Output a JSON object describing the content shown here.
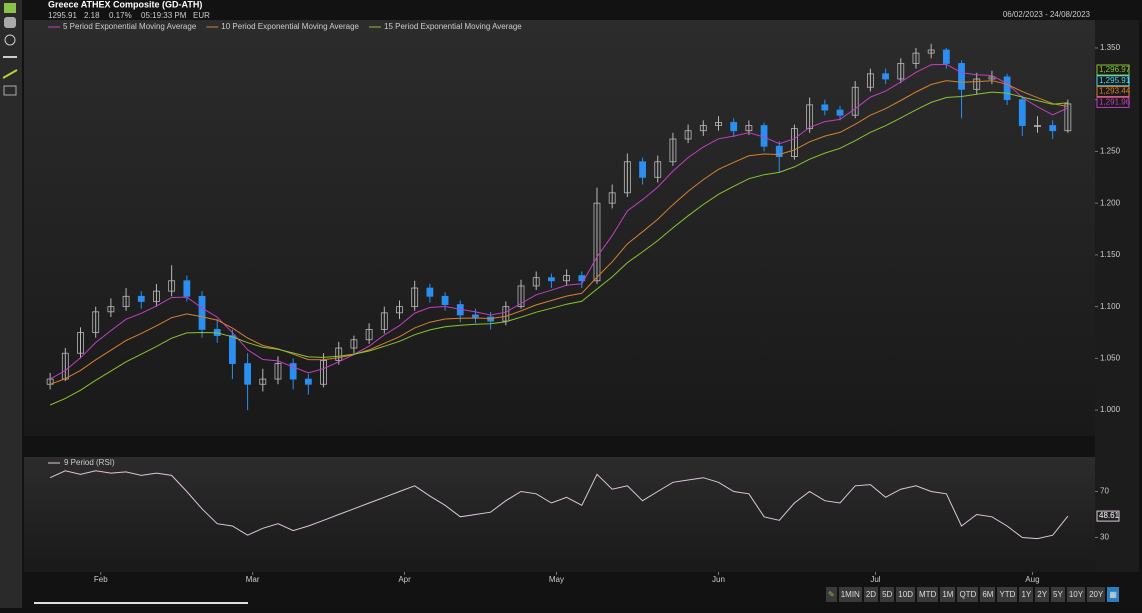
{
  "header": {
    "title": "Greece ATHEX Composite (GD-ATH)",
    "change": "2.18",
    "change_pct": "0.17%",
    "time": "05:19:33 PM",
    "currency": "EUR",
    "range": "06/02/2023 - 24/08/2023"
  },
  "last_labels": {
    "ema15": "1,296.97",
    "close": "1,295.91",
    "ema10": "1,293.44",
    "ema5": "1,291.96"
  },
  "buttons": [
    "1MIN",
    "2D",
    "5D",
    "10D",
    "MTD",
    "1M",
    "QTD",
    "6M",
    "YTD",
    "1Y",
    "2Y",
    "5Y",
    "10Y",
    "20Y"
  ],
  "chart_data": [
    {
      "type": "candlestick",
      "x": [
        0,
        3,
        6,
        9,
        12,
        15,
        18,
        21,
        24,
        27,
        30,
        33,
        36,
        39,
        42,
        45,
        48,
        51,
        54,
        57,
        60,
        63,
        66,
        69,
        72,
        75,
        78,
        81,
        84,
        87,
        90,
        93,
        96,
        99,
        102,
        105,
        108,
        111,
        114,
        117,
        120,
        123,
        126,
        129,
        132,
        135,
        138,
        141,
        144,
        147,
        150,
        153,
        156,
        159,
        162,
        165,
        168,
        171,
        174,
        177,
        180,
        183,
        186,
        189,
        192,
        195,
        198,
        201
      ],
      "xlim": [
        -2,
        203
      ],
      "xticks": [
        {
          "value": 10,
          "label": "Feb"
        },
        {
          "value": 40,
          "label": "Mar"
        },
        {
          "value": 70,
          "label": "Apr"
        },
        {
          "value": 100,
          "label": "May"
        },
        {
          "value": 132,
          "label": "Jun"
        },
        {
          "value": 163,
          "label": "Jul"
        },
        {
          "value": 194,
          "label": "Aug"
        }
      ],
      "ylim": [
        975,
        1377
      ],
      "yticks": [
        {
          "value": 1000,
          "label": "1.000"
        },
        {
          "value": 1050,
          "label": "1.050"
        },
        {
          "value": 1100,
          "label": "1.100"
        },
        {
          "value": 1150,
          "label": "1.150"
        },
        {
          "value": 1200,
          "label": "1.200"
        },
        {
          "value": 1250,
          "label": "1.250"
        },
        {
          "value": 1300,
          "label": "1.300"
        },
        {
          "value": 1350,
          "label": "1.350"
        }
      ],
      "grid": false,
      "up_color": "#b8b8b8",
      "down_color": "#2b8ff0",
      "open": [
        1025,
        1030,
        1055,
        1075,
        1095,
        1100,
        1110,
        1105,
        1115,
        1125,
        1110,
        1078,
        1072,
        1045,
        1025,
        1030,
        1045,
        1030,
        1025,
        1048,
        1060,
        1068,
        1078,
        1094,
        1100,
        1118,
        1110,
        1102,
        1092,
        1090,
        1086,
        1100,
        1120,
        1128,
        1125,
        1130,
        1125,
        1200,
        1210,
        1240,
        1225,
        1240,
        1262,
        1270,
        1275,
        1278,
        1270,
        1275,
        1255,
        1245,
        1272,
        1295,
        1290,
        1285,
        1312,
        1325,
        1320,
        1335,
        1345,
        1348,
        1335,
        1310,
        1320,
        1322,
        1300,
        1275,
        1275,
        1270
      ],
      "high": [
        1036,
        1060,
        1080,
        1100,
        1108,
        1118,
        1115,
        1122,
        1140,
        1130,
        1115,
        1088,
        1078,
        1055,
        1040,
        1052,
        1050,
        1035,
        1055,
        1066,
        1072,
        1084,
        1100,
        1106,
        1125,
        1122,
        1114,
        1106,
        1098,
        1095,
        1105,
        1126,
        1134,
        1132,
        1136,
        1134,
        1215,
        1218,
        1248,
        1244,
        1246,
        1268,
        1276,
        1280,
        1284,
        1282,
        1280,
        1278,
        1260,
        1276,
        1302,
        1300,
        1294,
        1318,
        1330,
        1330,
        1340,
        1350,
        1354,
        1350,
        1338,
        1326,
        1328,
        1325,
        1304,
        1284,
        1280,
        1300
      ],
      "low": [
        1020,
        1028,
        1050,
        1070,
        1090,
        1096,
        1098,
        1100,
        1110,
        1105,
        1070,
        1065,
        1030,
        1000,
        1018,
        1025,
        1020,
        1015,
        1022,
        1044,
        1055,
        1064,
        1074,
        1088,
        1096,
        1104,
        1096,
        1085,
        1084,
        1078,
        1082,
        1098,
        1116,
        1118,
        1120,
        1118,
        1122,
        1195,
        1206,
        1218,
        1220,
        1236,
        1258,
        1265,
        1270,
        1264,
        1266,
        1250,
        1230,
        1242,
        1268,
        1285,
        1280,
        1282,
        1308,
        1315,
        1316,
        1330,
        1340,
        1330,
        1282,
        1305,
        1315,
        1295,
        1265,
        1268,
        1262,
        1268
      ],
      "close": [
        1030,
        1055,
        1075,
        1095,
        1100,
        1110,
        1105,
        1115,
        1125,
        1110,
        1078,
        1072,
        1045,
        1025,
        1030,
        1045,
        1030,
        1025,
        1048,
        1060,
        1068,
        1078,
        1094,
        1100,
        1118,
        1110,
        1102,
        1092,
        1090,
        1086,
        1100,
        1120,
        1128,
        1125,
        1130,
        1125,
        1200,
        1210,
        1240,
        1225,
        1240,
        1262,
        1270,
        1275,
        1278,
        1270,
        1275,
        1255,
        1245,
        1272,
        1295,
        1290,
        1285,
        1312,
        1325,
        1320,
        1335,
        1345,
        1348,
        1335,
        1310,
        1320,
        1322,
        1300,
        1275,
        1275,
        1270,
        1295.91
      ],
      "series": [
        {
          "name": "5 Period Exponential Moving Average",
          "color": "#c23fc2",
          "values": [
            1030,
            1038.3,
            1050.6,
            1065.4,
            1076.9,
            1087.9,
            1093.6,
            1100.7,
            1108.8,
            1109.2,
            1098.8,
            1089.9,
            1074.9,
            1058.3,
            1048.9,
            1047.6,
            1041.7,
            1036.1,
            1040.1,
            1046.7,
            1053.8,
            1061.9,
            1072.6,
            1081.7,
            1093.8,
            1099.2,
            1100.1,
            1097.4,
            1094.9,
            1091.9,
            1094.6,
            1103.1,
            1111.4,
            1115.9,
            1120.6,
            1122.1,
            1148.1,
            1168.7,
            1192.5,
            1203.3,
            1215.5,
            1231,
            1244,
            1254.3,
            1262.2,
            1264.8,
            1268.2,
            1263.8,
            1257.5,
            1262.3,
            1273.2,
            1278.8,
            1280.9,
            1291.3,
            1302.5,
            1308.3,
            1317.2,
            1326.5,
            1333.7,
            1334.1,
            1326.1,
            1324.1,
            1323.4,
            1315.6,
            1302.1,
            1293.1,
            1285.4,
            1291.96
          ]
        },
        {
          "name": "10 Period Exponential Moving Average",
          "color": "#d5812f",
          "values": [
            1025,
            1030.4,
            1038.4,
            1048.6,
            1057.9,
            1067.3,
            1074.1,
            1081.5,
            1089.3,
            1093,
            1090.3,
            1087,
            1079.4,
            1069.6,
            1062.5,
            1059.3,
            1054,
            1048.8,
            1048.7,
            1050.7,
            1053.8,
            1058.2,
            1064.6,
            1071,
            1079.5,
            1085,
            1088.1,
            1088.8,
            1089,
            1088.5,
            1090.6,
            1095.9,
            1101.7,
            1105.9,
            1110.2,
            1112.9,
            1128.6,
            1143.3,
            1160.7,
            1172.3,
            1184.5,
            1198.5,
            1211.4,
            1222.8,
            1232.7,
            1239.4,
            1245.8,
            1247.5,
            1247,
            1251.5,
            1259.3,
            1264.8,
            1268.4,
            1276.2,
            1285,
            1291.3,
            1299.2,
            1307.4,
            1314.7,
            1318.4,
            1316.9,
            1317.5,
            1318.3,
            1315,
            1307.8,
            1301.9,
            1296.2,
            1293.44
          ]
        },
        {
          "name": "15 Period Exponential Moving Average",
          "color": "#86c531",
          "values": [
            1005,
            1011.3,
            1019.3,
            1028.8,
            1037.7,
            1046.7,
            1054,
            1061.6,
            1069.5,
            1074.6,
            1075,
            1074.6,
            1070.9,
            1065.2,
            1060.8,
            1058.8,
            1055.2,
            1051.4,
            1051,
            1052.1,
            1054.1,
            1057.1,
            1061.7,
            1066.5,
            1072.9,
            1077.5,
            1080.6,
            1082,
            1083,
            1083.4,
            1085.5,
            1089.8,
            1094.6,
            1098.4,
            1102.4,
            1105.2,
            1117.1,
            1128.7,
            1142.6,
            1152.9,
            1163.8,
            1176.1,
            1187.8,
            1198.7,
            1208.6,
            1216.3,
            1223.6,
            1227.5,
            1229.7,
            1235,
            1242.5,
            1248.4,
            1253,
            1260.4,
            1268.5,
            1274.9,
            1282.4,
            1290.2,
            1297.4,
            1302.1,
            1303.1,
            1305.2,
            1307.3,
            1306.4,
            1302.5,
            1299.1,
            1295.5,
            1296.97
          ]
        }
      ]
    },
    {
      "type": "line",
      "ylim": [
        0,
        100
      ],
      "yticks": [
        30,
        70
      ],
      "series": [
        {
          "name": "9 Period (RSI)",
          "color": "#dcc6dc",
          "values": [
            82,
            88,
            85,
            88,
            86,
            87,
            84,
            86,
            84,
            70,
            55,
            42,
            40,
            32,
            38,
            42,
            36,
            40,
            45,
            50,
            55,
            60,
            65,
            70,
            75,
            66,
            58,
            48,
            50,
            52,
            62,
            70,
            68,
            60,
            65,
            58,
            85,
            72,
            75,
            62,
            70,
            78,
            80,
            82,
            78,
            70,
            68,
            48,
            45,
            60,
            70,
            62,
            60,
            75,
            76,
            65,
            72,
            75,
            70,
            68,
            40,
            50,
            48,
            40,
            30,
            29,
            32,
            48.61
          ]
        }
      ]
    }
  ]
}
